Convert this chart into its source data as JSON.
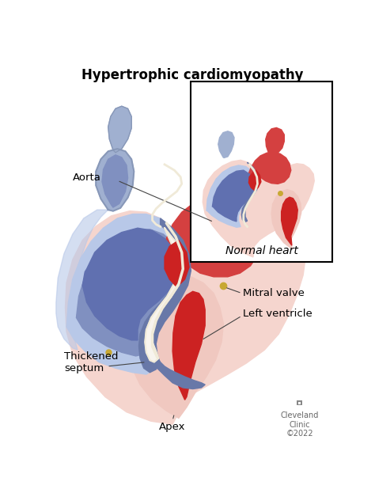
{
  "title": "Hypertrophic cardiomyopathy",
  "title_fontsize": 12,
  "title_fontweight": "bold",
  "bg_color": "#ffffff",
  "labels": {
    "aorta": "Aorta",
    "mitral_valve": "Mitral valve",
    "left_ventricle": "Left ventricle",
    "thickened_septum": "Thickened\nseptum",
    "apex": "Apex",
    "normal_heart": "Normal heart"
  },
  "label_fontsize": 9.5,
  "cleveland_text": "Cleveland\nClinic\n©2022",
  "cleveland_fontsize": 7,
  "colors": {
    "red_bright": "#cc2222",
    "red_medium": "#c43030",
    "red_dark": "#9b1c1c",
    "red_aorta": "#d44040",
    "pink_lv": "#f0c8c0",
    "pink_outer": "#f5d5ce",
    "blue_pale": "#b8c8e8",
    "blue_mid": "#8090c0",
    "blue_dark": "#6070b0",
    "blue_vessel": "#a0b0d0",
    "blue_rv_inner": "#7888b8",
    "cream": "#f0ead8",
    "gold": "#c8a832",
    "gray_line": "#444444",
    "white_inner": "#f8f4ee",
    "septum_blue": "#6878a8"
  }
}
